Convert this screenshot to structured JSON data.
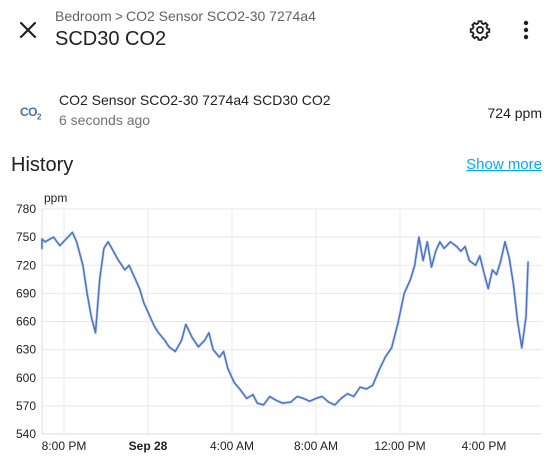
{
  "header": {
    "breadcrumb": [
      "Bedroom",
      "CO2 Sensor SCO2-30 7274a4"
    ],
    "breadcrumb_separator": ">",
    "title": "SCD30 CO2"
  },
  "entity": {
    "icon": "molecule-co2-icon",
    "icon_text": "CO",
    "icon_sub": "2",
    "name": "CO2 Sensor SCO2-30 7274a4 SCD30 CO2",
    "last_changed": "6 seconds ago",
    "state": "724 ppm"
  },
  "history": {
    "title": "History",
    "show_more": "Show more"
  },
  "colors": {
    "accent": "#03a9f4",
    "line": "#4a72c5",
    "icon": "#44739e"
  },
  "chart_data": {
    "type": "line",
    "ylabel": "ppm",
    "ylim": [
      540,
      780
    ],
    "yticks": [
      540,
      570,
      600,
      630,
      660,
      690,
      720,
      750,
      780
    ],
    "xticks": [
      {
        "label": "8:00 PM",
        "t": 0,
        "bold": false
      },
      {
        "label": "Sep 28",
        "t": 4,
        "bold": true
      },
      {
        "label": "4:00 AM",
        "t": 8,
        "bold": false
      },
      {
        "label": "8:00 AM",
        "t": 12,
        "bold": false
      },
      {
        "label": "12:00 PM",
        "t": 16,
        "bold": false
      },
      {
        "label": "4:00 PM",
        "t": 20,
        "bold": false
      }
    ],
    "grid": true,
    "series": [
      {
        "values": [
          [
            -2.0,
            741
          ],
          [
            -1.7,
            738
          ],
          [
            -1.3,
            748
          ],
          [
            -0.9,
            745
          ],
          [
            -0.5,
            750
          ],
          [
            -0.2,
            741
          ],
          [
            0.1,
            748
          ],
          [
            0.4,
            755
          ],
          [
            0.6,
            745
          ],
          [
            0.9,
            720
          ],
          [
            1.1,
            690
          ],
          [
            1.3,
            665
          ],
          [
            1.5,
            648
          ],
          [
            1.7,
            705
          ],
          [
            1.9,
            738
          ],
          [
            2.1,
            745
          ],
          [
            2.3,
            737
          ],
          [
            2.6,
            725
          ],
          [
            2.9,
            715
          ],
          [
            3.1,
            720
          ],
          [
            3.4,
            705
          ],
          [
            3.6,
            695
          ],
          [
            3.8,
            680
          ],
          [
            4.0,
            670
          ],
          [
            4.3,
            655
          ],
          [
            4.5,
            648
          ],
          [
            4.8,
            640
          ],
          [
            5.0,
            633
          ],
          [
            5.3,
            628
          ],
          [
            5.6,
            640
          ],
          [
            5.8,
            657
          ],
          [
            6.1,
            643
          ],
          [
            6.4,
            633
          ],
          [
            6.7,
            640
          ],
          [
            6.9,
            648
          ],
          [
            7.1,
            630
          ],
          [
            7.4,
            622
          ],
          [
            7.6,
            628
          ],
          [
            7.8,
            610
          ],
          [
            8.1,
            595
          ],
          [
            8.4,
            587
          ],
          [
            8.7,
            578
          ],
          [
            9.0,
            582
          ],
          [
            9.2,
            573
          ],
          [
            9.5,
            571
          ],
          [
            9.8,
            580
          ],
          [
            10.1,
            576
          ],
          [
            10.4,
            573
          ],
          [
            10.8,
            574
          ],
          [
            11.1,
            580
          ],
          [
            11.4,
            578
          ],
          [
            11.7,
            575
          ],
          [
            12.0,
            578
          ],
          [
            12.3,
            580
          ],
          [
            12.6,
            574
          ],
          [
            12.9,
            571
          ],
          [
            13.2,
            578
          ],
          [
            13.5,
            583
          ],
          [
            13.8,
            580
          ],
          [
            14.1,
            590
          ],
          [
            14.4,
            588
          ],
          [
            14.7,
            592
          ],
          [
            15.0,
            608
          ],
          [
            15.3,
            622
          ],
          [
            15.6,
            632
          ],
          [
            15.9,
            658
          ],
          [
            16.2,
            690
          ],
          [
            16.5,
            705
          ],
          [
            16.7,
            720
          ],
          [
            16.9,
            750
          ],
          [
            17.1,
            725
          ],
          [
            17.3,
            745
          ],
          [
            17.5,
            718
          ],
          [
            17.7,
            735
          ],
          [
            17.9,
            745
          ],
          [
            18.1,
            738
          ],
          [
            18.4,
            745
          ],
          [
            18.7,
            740
          ],
          [
            18.9,
            735
          ],
          [
            19.1,
            740
          ],
          [
            19.3,
            725
          ],
          [
            19.6,
            720
          ],
          [
            19.8,
            730
          ],
          [
            20.0,
            712
          ],
          [
            20.2,
            695
          ],
          [
            20.4,
            715
          ],
          [
            20.6,
            710
          ],
          [
            20.8,
            725
          ],
          [
            21.0,
            745
          ],
          [
            21.2,
            728
          ],
          [
            21.4,
            700
          ],
          [
            21.6,
            660
          ],
          [
            21.8,
            632
          ],
          [
            22.0,
            665
          ],
          [
            22.1,
            724
          ]
        ]
      }
    ]
  }
}
